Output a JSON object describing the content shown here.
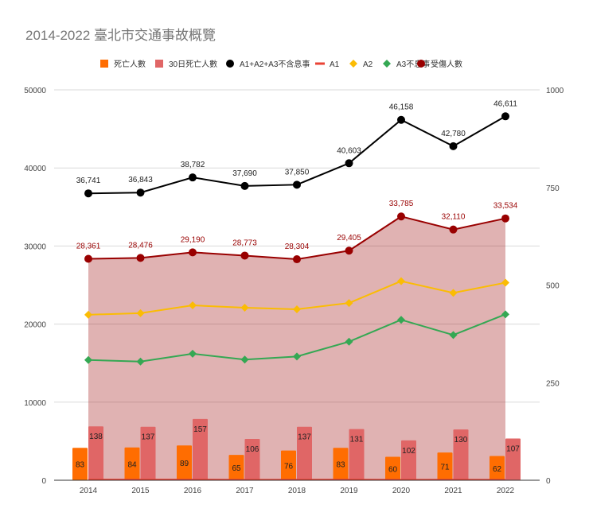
{
  "chart_data": {
    "type": "combo",
    "title": "2014-2022 臺北市交通事故概覽",
    "categories": [
      "2014",
      "2015",
      "2016",
      "2017",
      "2018",
      "2019",
      "2020",
      "2021",
      "2022"
    ],
    "left_axis": {
      "ylim": [
        0,
        50000
      ],
      "ticks": [
        "0",
        "10000",
        "20000",
        "30000",
        "40000",
        "50000"
      ]
    },
    "right_axis": {
      "ylim": [
        0,
        1000
      ],
      "ticks": [
        "0",
        "250",
        "500",
        "750",
        "1000"
      ]
    },
    "grid": true,
    "legend_position": "top",
    "series": [
      {
        "name": "死亡人數",
        "kind": "bar",
        "axis": "right",
        "color": "#ff6d01",
        "values": [
          83,
          84,
          89,
          65,
          76,
          83,
          60,
          71,
          62
        ],
        "labels": [
          "83",
          "84",
          "89",
          "65",
          "76",
          "83",
          "60",
          "71",
          "62"
        ]
      },
      {
        "name": "30日死亡人數",
        "kind": "bar",
        "axis": "right",
        "color": "#e06666",
        "values": [
          138,
          137,
          157,
          106,
          137,
          131,
          102,
          130,
          107
        ],
        "labels": [
          "138",
          "137",
          "157",
          "106",
          "137",
          "131",
          "102",
          "130",
          "107"
        ]
      },
      {
        "name": "A1+A2+A3不含息事",
        "kind": "line",
        "axis": "left",
        "color": "#000000",
        "marker": "circle",
        "values": [
          36741,
          36843,
          38782,
          37690,
          37850,
          40603,
          46158,
          42780,
          46611
        ],
        "labels": [
          "36,741",
          "36,843",
          "38,782",
          "37,690",
          "37,850",
          "40,603",
          "46,158",
          "42,780",
          "46,611"
        ]
      },
      {
        "name": "A1",
        "kind": "line",
        "axis": "left",
        "color": "#ea4335",
        "marker": "none",
        "values": [
          83,
          84,
          89,
          65,
          76,
          83,
          60,
          71,
          62
        ]
      },
      {
        "name": "A2",
        "kind": "line",
        "axis": "left",
        "color": "#fbbc04",
        "marker": "diamond",
        "values": [
          21200,
          21400,
          22400,
          22100,
          21900,
          22700,
          25500,
          24000,
          25300
        ]
      },
      {
        "name": "A3不息事",
        "kind": "line",
        "axis": "left",
        "color": "#34a853",
        "marker": "diamond",
        "values": [
          15400,
          15200,
          16200,
          15450,
          15850,
          17750,
          20550,
          18600,
          21250
        ]
      },
      {
        "name": "受傷人數",
        "kind": "area",
        "axis": "left",
        "color": "#990000",
        "marker": "circle",
        "values": [
          28361,
          28476,
          29190,
          28773,
          28304,
          29405,
          33785,
          32110,
          33534
        ],
        "labels": [
          "28,361",
          "28,476",
          "29,190",
          "28,773",
          "28,304",
          "29,405",
          "33,785",
          "32,110",
          "33,534"
        ]
      }
    ]
  }
}
